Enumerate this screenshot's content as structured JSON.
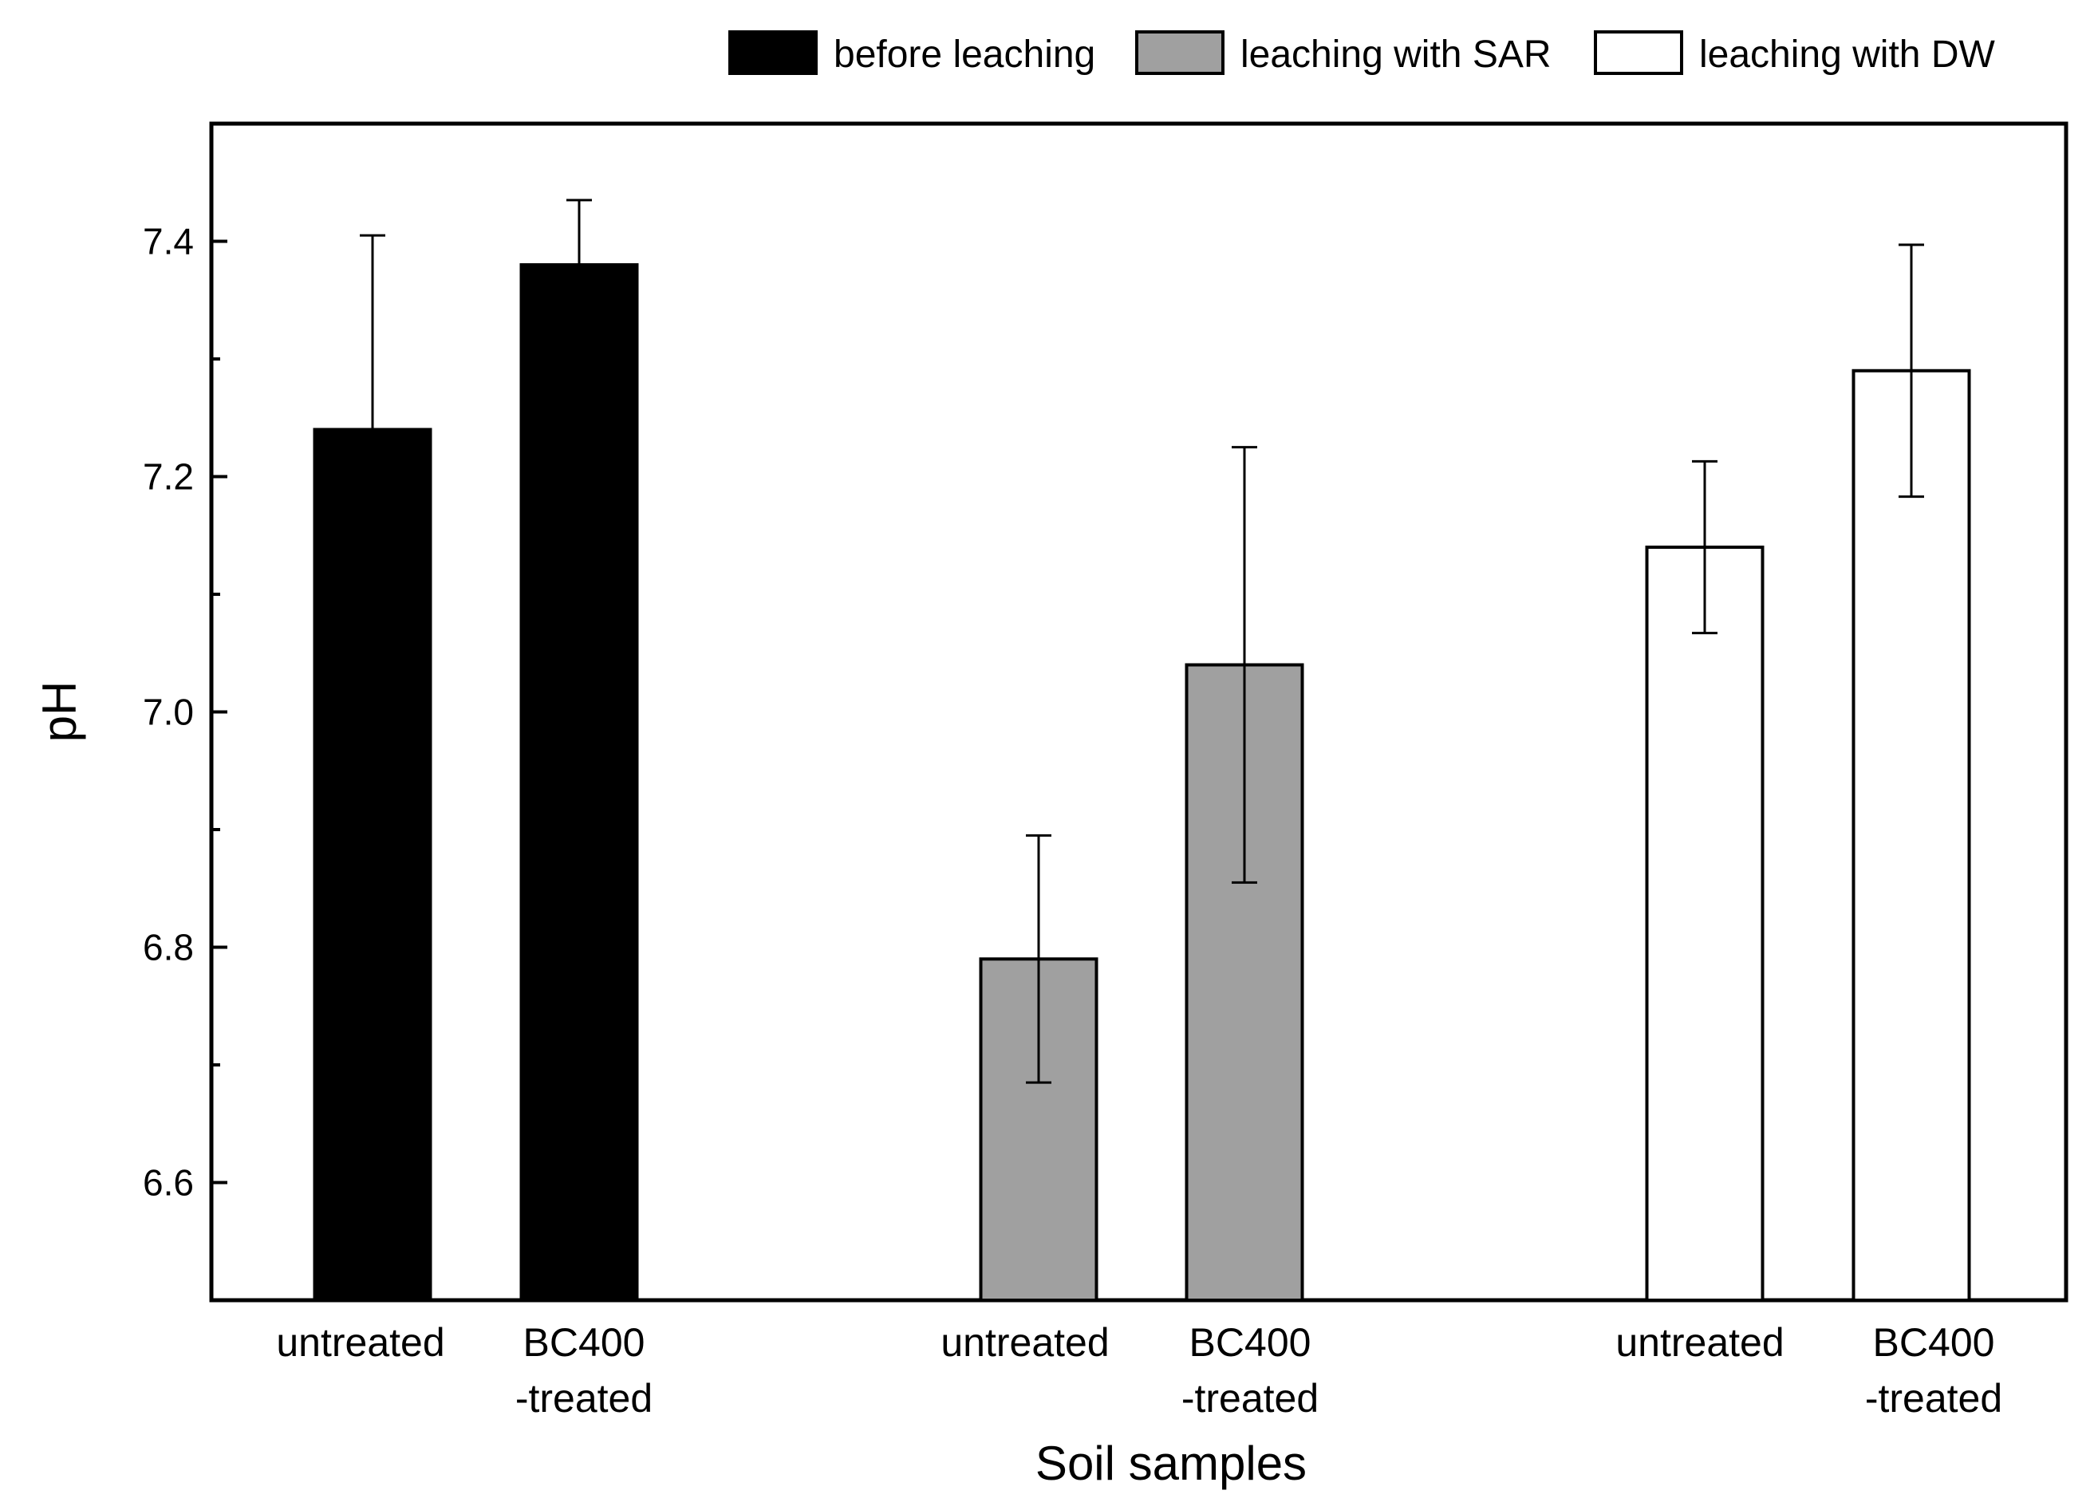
{
  "chart_data": {
    "type": "bar",
    "xlabel": "Soil samples",
    "ylabel": "pH",
    "ylim": [
      6.5,
      7.5
    ],
    "yticks": [
      "6.6",
      "6.8",
      "7.0",
      "7.2",
      "7.4"
    ],
    "legend_position": "top-right",
    "groups": [
      {
        "series": "before leaching",
        "color": "#000000",
        "bars": [
          {
            "label_line1": "untreated",
            "label_line2": "",
            "value": 7.24,
            "error": 0.165
          },
          {
            "label_line1": "BC400",
            "label_line2": "-treated",
            "value": 7.38,
            "error": 0.055
          }
        ]
      },
      {
        "series": "leaching with SAR",
        "color": "#a0a0a0",
        "bars": [
          {
            "label_line1": "untreated",
            "label_line2": "",
            "value": 6.79,
            "error": 0.105
          },
          {
            "label_line1": "BC400",
            "label_line2": "-treated",
            "value": 7.04,
            "error": 0.185
          }
        ]
      },
      {
        "series": "leaching with DW",
        "color": "#ffffff",
        "bars": [
          {
            "label_line1": "untreated",
            "label_line2": "",
            "value": 7.14,
            "error": 0.073
          },
          {
            "label_line1": "BC400",
            "label_line2": "-treated",
            "value": 7.29,
            "error": 0.107
          }
        ]
      }
    ],
    "legend": [
      {
        "label": "before leaching",
        "color": "#000000"
      },
      {
        "label": "leaching with SAR",
        "color": "#a0a0a0"
      },
      {
        "label": "leaching with DW",
        "color": "#ffffff"
      }
    ]
  }
}
